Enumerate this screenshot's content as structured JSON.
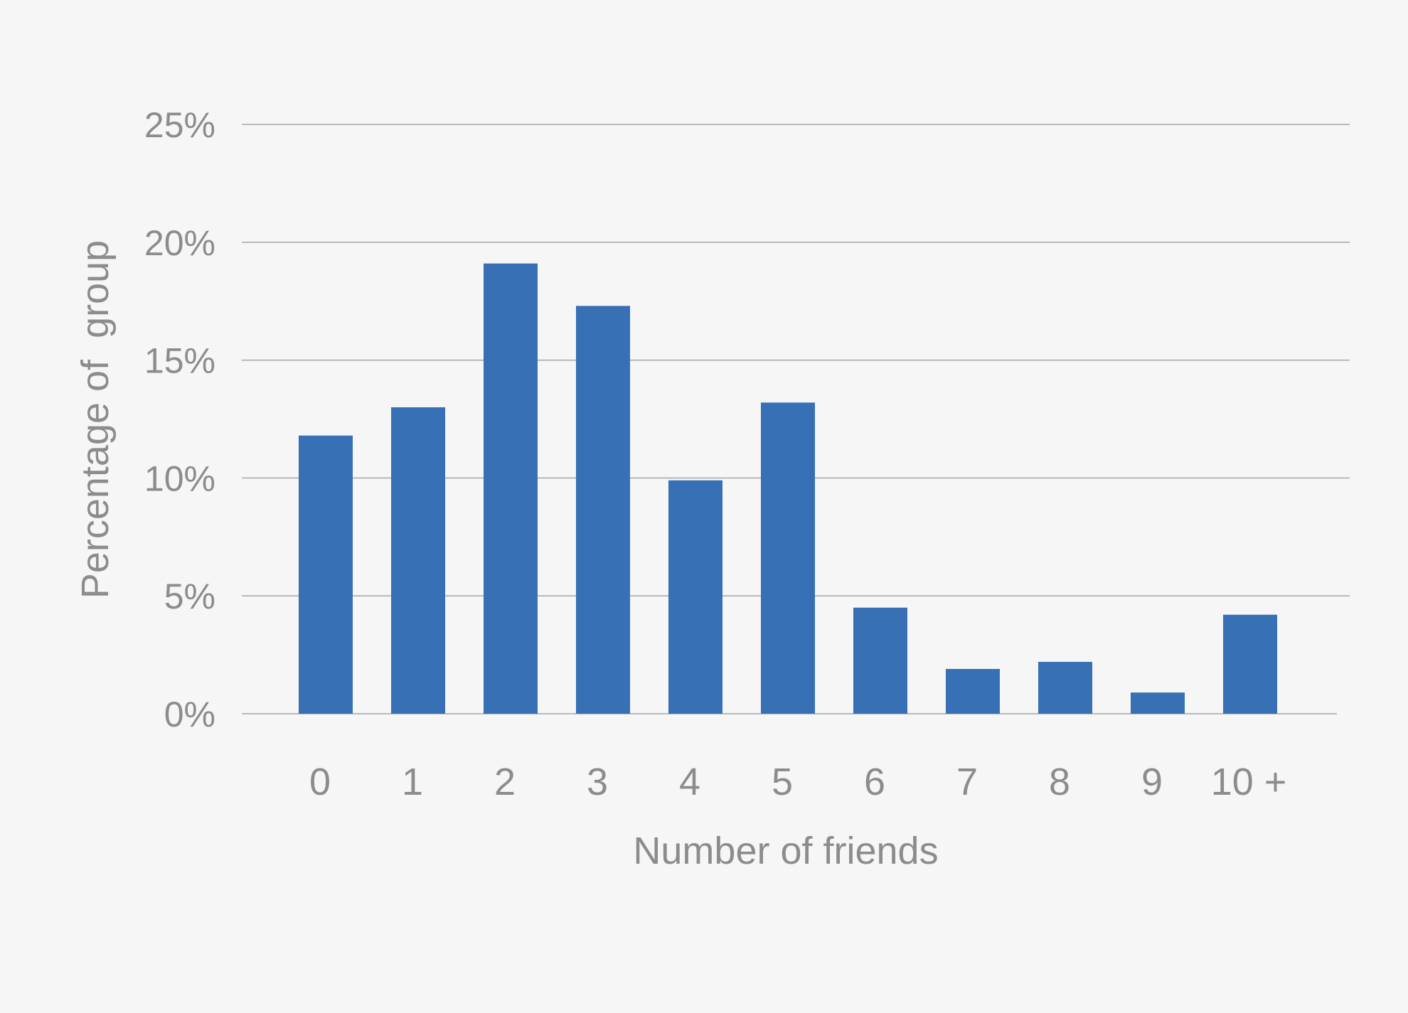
{
  "chart_data": {
    "type": "bar",
    "title": "",
    "xlabel": "Number of friends",
    "ylabel": "Percentage of  group",
    "categories": [
      "0",
      "1",
      "2",
      "3",
      "4",
      "5",
      "6",
      "7",
      "8",
      "9",
      "10 +"
    ],
    "values": [
      11.8,
      13.0,
      19.1,
      17.3,
      9.9,
      13.2,
      4.5,
      1.9,
      2.2,
      0.9,
      4.2
    ],
    "ylim": [
      0,
      25
    ],
    "yticks": [
      0,
      5,
      10,
      15,
      20,
      25
    ],
    "ytick_labels": [
      "0%",
      "5%",
      "10%",
      "15%",
      "20%",
      "25%"
    ],
    "grid": true,
    "legend": "none",
    "colors": {
      "bar": "#3770b5",
      "grid": "#a6a6a6",
      "text": "#8c8c8c",
      "background": "#f6f6f6"
    }
  }
}
